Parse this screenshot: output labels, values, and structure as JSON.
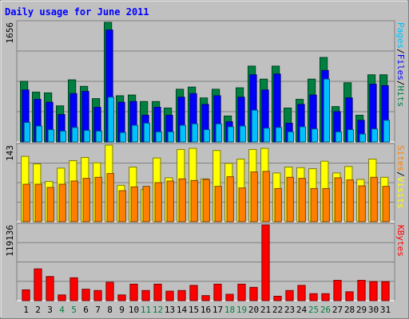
{
  "chart_data": {
    "type": "bar",
    "title": "Daily usage for June 2011",
    "categories": [
      "1",
      "2",
      "3",
      "4",
      "5",
      "6",
      "7",
      "8",
      "9",
      "10",
      "11",
      "12",
      "13",
      "14",
      "15",
      "16",
      "17",
      "18",
      "19",
      "20",
      "21",
      "22",
      "23",
      "24",
      "25",
      "26",
      "27",
      "28",
      "29",
      "30",
      "31"
    ],
    "weekend_days": [
      "4",
      "5",
      "11",
      "12",
      "18",
      "19",
      "25",
      "26"
    ],
    "panels": [
      {
        "id": "pages-files-hits",
        "ymax": 1656,
        "ymax_label": "1656",
        "series": [
          {
            "name": "Hits",
            "color": "#008040",
            "values": [
              840,
              690,
              680,
              500,
              860,
              770,
              600,
              1656,
              640,
              650,
              560,
              560,
              470,
              730,
              760,
              610,
              730,
              360,
              750,
              1050,
              870,
              1050,
              470,
              590,
              870,
              1170,
              490,
              820,
              370,
              930,
              930
            ]
          },
          {
            "name": "Files",
            "color": "#0000ff",
            "values": [
              720,
              590,
              550,
              380,
              670,
              700,
              480,
              1550,
              550,
              560,
              370,
              480,
              370,
              620,
              670,
              520,
              640,
              280,
              620,
              930,
              720,
              940,
              260,
              520,
              650,
              990,
              420,
              610,
              300,
              800,
              780
            ]
          },
          {
            "name": "Pages",
            "color": "#00c0ff",
            "values": [
              270,
              220,
              170,
              150,
              200,
              160,
              150,
              620,
              130,
              230,
              260,
              140,
              140,
              230,
              250,
              170,
              250,
              210,
              220,
              440,
              190,
              200,
              140,
              210,
              180,
              870,
              140,
              170,
              110,
              180,
              300
            ]
          }
        ]
      },
      {
        "id": "visits-sites",
        "ymax": 143,
        "ymax_label": "143",
        "series": [
          {
            "name": "Visits",
            "color": "#ffff00",
            "values": [
              122,
              108,
              75,
              100,
              114,
              120,
              110,
              143,
              68,
              102,
              60,
              119,
              82,
              135,
              137,
              80,
              133,
              109,
              117,
              135,
              137,
              91,
              102,
              101,
              99,
              113,
              91,
              103,
              79,
              117,
              83
            ]
          },
          {
            "name": "Sites",
            "color": "#ff8000",
            "values": [
              70,
              70,
              64,
              70,
              76,
              81,
              83,
              90,
              58,
              65,
              66,
              73,
              76,
              80,
              77,
              79,
              66,
              84,
              63,
              93,
              94,
              62,
              83,
              81,
              62,
              62,
              82,
              78,
              67,
              83,
              66
            ]
          }
        ]
      },
      {
        "id": "kbytes",
        "ymax": 119136,
        "ymax_label": "119136",
        "series": [
          {
            "name": "KBytes",
            "color": "#ff0000",
            "values": [
              17000,
              50000,
              38000,
              9000,
              36000,
              18000,
              16000,
              29000,
              9000,
              26000,
              16000,
              26000,
              15000,
              16000,
              24000,
              8000,
              26000,
              10000,
              26000,
              21000,
              119136,
              7000,
              16000,
              24000,
              11000,
              11000,
              32000,
              14000,
              32000,
              30000,
              30000
            ]
          }
        ]
      }
    ],
    "legend": [
      {
        "panel": "pages-files-hits",
        "labels": [
          "Pages",
          "Files",
          "Hits"
        ]
      },
      {
        "panel": "visits-sites",
        "labels": [
          "Sites",
          "Visits"
        ]
      },
      {
        "panel": "kbytes",
        "labels": [
          "KBytes"
        ]
      }
    ],
    "colors": {
      "background": "#c0c0c0",
      "frame_light": "#ffffff",
      "frame_dark": "#808080",
      "title": "#0000ff",
      "gridline": "#808080",
      "axis_text": "#000000",
      "weekend_text": "#008040",
      "legend_separator": "#000000"
    }
  }
}
